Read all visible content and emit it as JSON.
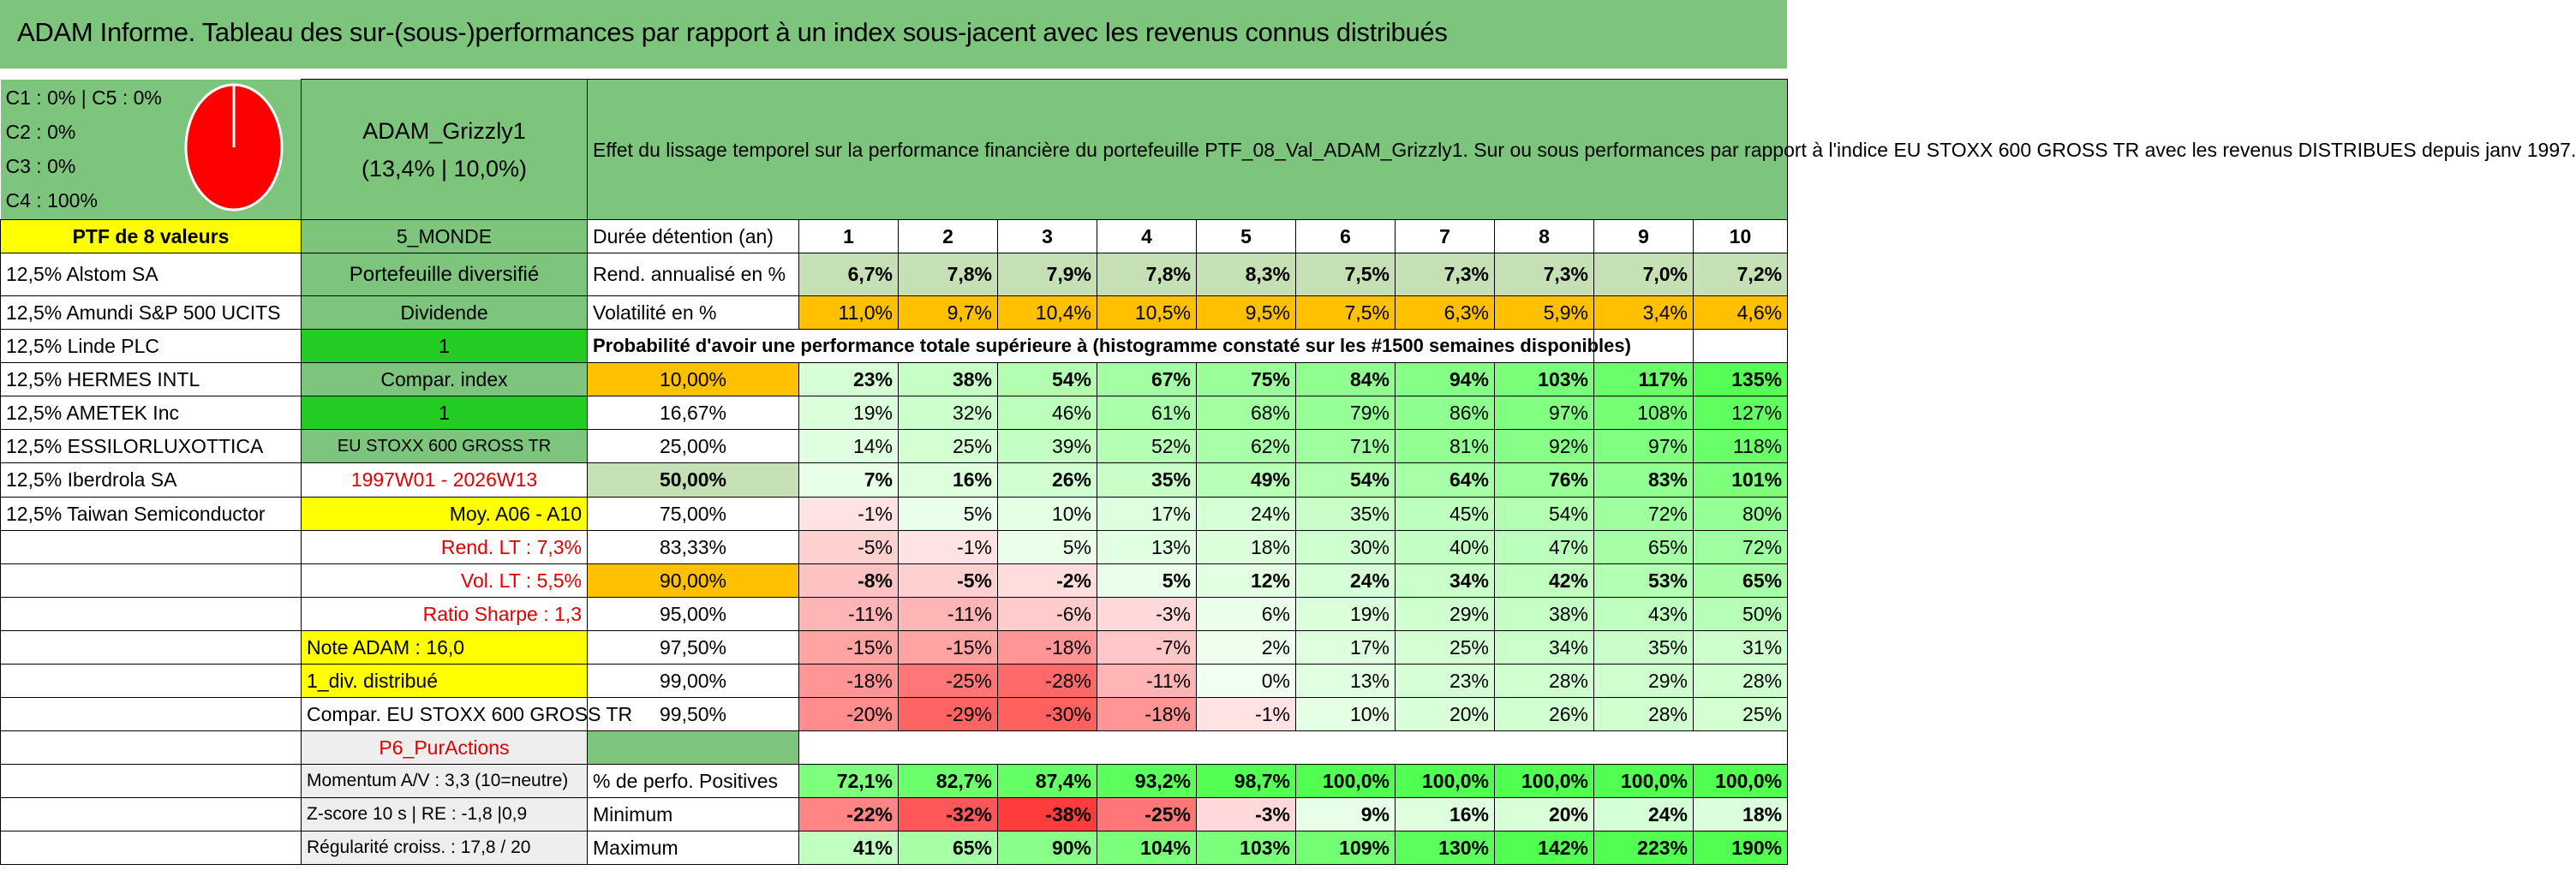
{
  "title": "ADAM Informe. Tableau des sur-(sous-)performances par rapport à un index sous-jacent avec les revenus connus distribués",
  "legend": [
    "C1 : 0% | C5 : 0%",
    "C2 : 0%",
    "C3 : 0%",
    "C4 : 100%"
  ],
  "pie": {
    "C4_share": 1.0,
    "color": "#ff0000"
  },
  "fund": {
    "name": "ADAM_Grizzly1",
    "perf": "(13,4% | 10,0%)"
  },
  "description": "Effet du lissage temporel sur la performance financière du portefeuille PTF_08_Val_ADAM_Grizzly1. Sur ou sous performances par rapport à l'indice EU STOXX 600 GROSS TR avec les revenus DISTRIBUES depuis janv 1997.",
  "ptf_label": "PTF de 8 valeurs",
  "zone": "5_MONDE",
  "holding_label": "Durée détention (an)",
  "years": [
    "1",
    "2",
    "3",
    "4",
    "5",
    "6",
    "7",
    "8",
    "9",
    "10"
  ],
  "holdings": [
    "12,5% Alstom SA",
    "12,5% Amundi S&P 500 UCITS",
    "12,5% Linde PLC",
    "12,5% HERMES INTL",
    "12,5% AMETEK Inc",
    "12,5% ESSILORLUXOTTICA",
    "12,5% Iberdrola SA",
    "12,5% Taiwan Semiconductor"
  ],
  "side": {
    "portefeuille": "Portefeuille diversifié",
    "dividende": "Dividende",
    "one_a": "1",
    "compar_index": "Compar. index",
    "one_b": "1",
    "index_name": "EU STOXX 600 GROSS TR",
    "period": "1997W01 - 2026W13",
    "moy": "Moy. A06 - A10",
    "rend_lt": "Rend. LT : 7,3%",
    "vol_lt": "Vol. LT : 5,5%",
    "sharpe": "Ratio Sharpe : 1,3",
    "note": "Note ADAM : 16,0",
    "div": "1_div. distribué",
    "compar": "Compar. EU STOXX 600 GROSS TR",
    "p6": "P6_PurActions",
    "momentum": "Momentum A/V : 3,3 (10=neutre)",
    "zscore": "Z-score 10 s | RE : -1,8 |0,9",
    "regularite": "Régularité croiss. : 17,8 / 20"
  },
  "rend_label": "Rend. annualisé en %",
  "rend": [
    "6,7%",
    "7,8%",
    "7,9%",
    "7,8%",
    "8,3%",
    "7,5%",
    "7,3%",
    "7,3%",
    "7,0%",
    "7,2%"
  ],
  "vol_label": "Volatilité en %",
  "vol": [
    "11,0%",
    "9,7%",
    "10,4%",
    "10,5%",
    "9,5%",
    "7,5%",
    "6,3%",
    "5,9%",
    "3,4%",
    "4,6%"
  ],
  "prob_label": "Probabilité d'avoir une performance totale supérieure à (histogramme constaté sur les #1500 semaines disponibles)",
  "prob_rows": [
    {
      "p": "10,00%",
      "v": [
        "23%",
        "38%",
        "54%",
        "67%",
        "75%",
        "84%",
        "94%",
        "103%",
        "117%",
        "135%"
      ]
    },
    {
      "p": "16,67%",
      "v": [
        "19%",
        "32%",
        "46%",
        "61%",
        "68%",
        "79%",
        "86%",
        "97%",
        "108%",
        "127%"
      ]
    },
    {
      "p": "25,00%",
      "v": [
        "14%",
        "25%",
        "39%",
        "52%",
        "62%",
        "71%",
        "81%",
        "92%",
        "97%",
        "118%"
      ]
    },
    {
      "p": "50,00%",
      "v": [
        "7%",
        "16%",
        "26%",
        "35%",
        "49%",
        "54%",
        "64%",
        "76%",
        "83%",
        "101%"
      ]
    },
    {
      "p": "75,00%",
      "v": [
        "-1%",
        "5%",
        "10%",
        "17%",
        "24%",
        "35%",
        "45%",
        "54%",
        "72%",
        "80%"
      ]
    },
    {
      "p": "83,33%",
      "v": [
        "-5%",
        "-1%",
        "5%",
        "13%",
        "18%",
        "30%",
        "40%",
        "47%",
        "65%",
        "72%"
      ]
    },
    {
      "p": "90,00%",
      "v": [
        "-8%",
        "-5%",
        "-2%",
        "5%",
        "12%",
        "24%",
        "34%",
        "42%",
        "53%",
        "65%"
      ]
    },
    {
      "p": "95,00%",
      "v": [
        "-11%",
        "-11%",
        "-6%",
        "-3%",
        "6%",
        "19%",
        "29%",
        "38%",
        "43%",
        "50%"
      ]
    },
    {
      "p": "97,50%",
      "v": [
        "-15%",
        "-15%",
        "-18%",
        "-7%",
        "2%",
        "17%",
        "25%",
        "34%",
        "35%",
        "31%"
      ]
    },
    {
      "p": "99,00%",
      "v": [
        "-18%",
        "-25%",
        "-28%",
        "-11%",
        "0%",
        "13%",
        "23%",
        "28%",
        "29%",
        "28%"
      ]
    },
    {
      "p": "99,50%",
      "v": [
        "-20%",
        "-29%",
        "-30%",
        "-18%",
        "-1%",
        "10%",
        "20%",
        "26%",
        "28%",
        "25%"
      ]
    }
  ],
  "pos_label": "% de perfo. Positives",
  "pos": [
    "72,1%",
    "82,7%",
    "87,4%",
    "93,2%",
    "98,7%",
    "100,0%",
    "100,0%",
    "100,0%",
    "100,0%",
    "100,0%"
  ],
  "min_label": "Minimum",
  "min": [
    "-22%",
    "-32%",
    "-38%",
    "-25%",
    "-3%",
    "9%",
    "16%",
    "20%",
    "24%",
    "18%"
  ],
  "max_label": "Maximum",
  "max": [
    "41%",
    "65%",
    "90%",
    "104%",
    "103%",
    "109%",
    "130%",
    "142%",
    "223%",
    "190%"
  ]
}
